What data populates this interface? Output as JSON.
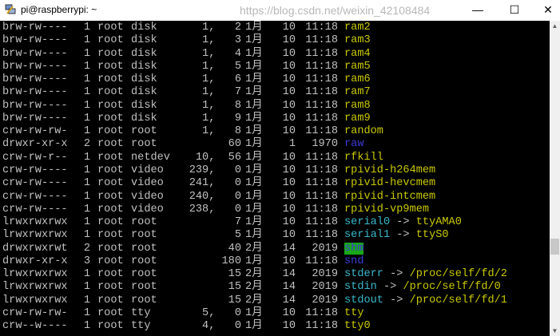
{
  "window": {
    "title": "pi@raspberrypi: ~",
    "minimize": "—",
    "maximize": "☐",
    "close": "✕"
  },
  "colors": {
    "file": "#c8c800",
    "symlink": "#3ab8cc",
    "directory": "#3c3cd8",
    "sticky_dir_bg": "#18a818",
    "text": "#c0c0c0",
    "background": "#000000"
  },
  "rows": [
    {
      "perm": "brw-rw----",
      "links": "1",
      "owner": "root",
      "group": "disk",
      "size": "1,   2",
      "month": "1月",
      "day": "10",
      "time": "11:18",
      "name": "ram2",
      "type": "yellow"
    },
    {
      "perm": "brw-rw----",
      "links": "1",
      "owner": "root",
      "group": "disk",
      "size": "1,   3",
      "month": "1月",
      "day": "10",
      "time": "11:18",
      "name": "ram3",
      "type": "yellow"
    },
    {
      "perm": "brw-rw----",
      "links": "1",
      "owner": "root",
      "group": "disk",
      "size": "1,   4",
      "month": "1月",
      "day": "10",
      "time": "11:18",
      "name": "ram4",
      "type": "yellow"
    },
    {
      "perm": "brw-rw----",
      "links": "1",
      "owner": "root",
      "group": "disk",
      "size": "1,   5",
      "month": "1月",
      "day": "10",
      "time": "11:18",
      "name": "ram5",
      "type": "yellow"
    },
    {
      "perm": "brw-rw----",
      "links": "1",
      "owner": "root",
      "group": "disk",
      "size": "1,   6",
      "month": "1月",
      "day": "10",
      "time": "11:18",
      "name": "ram6",
      "type": "yellow"
    },
    {
      "perm": "brw-rw----",
      "links": "1",
      "owner": "root",
      "group": "disk",
      "size": "1,   7",
      "month": "1月",
      "day": "10",
      "time": "11:18",
      "name": "ram7",
      "type": "yellow"
    },
    {
      "perm": "brw-rw----",
      "links": "1",
      "owner": "root",
      "group": "disk",
      "size": "1,   8",
      "month": "1月",
      "day": "10",
      "time": "11:18",
      "name": "ram8",
      "type": "yellow"
    },
    {
      "perm": "brw-rw----",
      "links": "1",
      "owner": "root",
      "group": "disk",
      "size": "1,   9",
      "month": "1月",
      "day": "10",
      "time": "11:18",
      "name": "ram9",
      "type": "yellow"
    },
    {
      "perm": "crw-rw-rw-",
      "links": "1",
      "owner": "root",
      "group": "root",
      "size": "1,   8",
      "month": "1月",
      "day": "10",
      "time": "11:18",
      "name": "random",
      "type": "yellow"
    },
    {
      "perm": "drwxr-xr-x",
      "links": "2",
      "owner": "root",
      "group": "root",
      "size": "60",
      "month": "1月",
      "day": "1",
      "time": "1970",
      "name": "raw",
      "type": "blue"
    },
    {
      "perm": "crw-rw-r--",
      "links": "1",
      "owner": "root",
      "group": "netdev",
      "size": "10,  56",
      "month": "1月",
      "day": "10",
      "time": "11:18",
      "name": "rfkill",
      "type": "yellow"
    },
    {
      "perm": "crw-rw----",
      "links": "1",
      "owner": "root",
      "group": "video",
      "size": "239,   0",
      "month": "1月",
      "day": "10",
      "time": "11:18",
      "name": "rpivid-h264mem",
      "type": "yellow"
    },
    {
      "perm": "crw-rw----",
      "links": "1",
      "owner": "root",
      "group": "video",
      "size": "241,   0",
      "month": "1月",
      "day": "10",
      "time": "11:18",
      "name": "rpivid-hevcmem",
      "type": "yellow"
    },
    {
      "perm": "crw-rw----",
      "links": "1",
      "owner": "root",
      "group": "video",
      "size": "240,   0",
      "month": "1月",
      "day": "10",
      "time": "11:18",
      "name": "rpivid-intcmem",
      "type": "yellow"
    },
    {
      "perm": "crw-rw----",
      "links": "1",
      "owner": "root",
      "group": "video",
      "size": "238,   0",
      "month": "1月",
      "day": "10",
      "time": "11:18",
      "name": "rpivid-vp9mem",
      "type": "yellow"
    },
    {
      "perm": "lrwxrwxrwx",
      "links": "1",
      "owner": "root",
      "group": "root",
      "size": "7",
      "month": "1月",
      "day": "10",
      "time": "11:18",
      "name": "serial0",
      "type": "cyan",
      "arrow": " -> ",
      "target": "ttyAMA0"
    },
    {
      "perm": "lrwxrwxrwx",
      "links": "1",
      "owner": "root",
      "group": "root",
      "size": "5",
      "month": "1月",
      "day": "10",
      "time": "11:18",
      "name": "serial1",
      "type": "cyan",
      "arrow": " -> ",
      "target": "ttyS0"
    },
    {
      "perm": "drwxrwxrwt",
      "links": "2",
      "owner": "root",
      "group": "root",
      "size": "40",
      "month": "2月",
      "day": "14",
      "time": "2019",
      "name": "shm",
      "type": "shm"
    },
    {
      "perm": "drwxr-xr-x",
      "links": "3",
      "owner": "root",
      "group": "root",
      "size": "180",
      "month": "1月",
      "day": "10",
      "time": "11:18",
      "name": "snd",
      "type": "blue"
    },
    {
      "perm": "lrwxrwxrwx",
      "links": "1",
      "owner": "root",
      "group": "root",
      "size": "15",
      "month": "2月",
      "day": "14",
      "time": "2019",
      "name": "stderr",
      "type": "cyan",
      "arrow": " -> ",
      "target": "/proc/self/fd/2"
    },
    {
      "perm": "lrwxrwxrwx",
      "links": "1",
      "owner": "root",
      "group": "root",
      "size": "15",
      "month": "2月",
      "day": "14",
      "time": "2019",
      "name": "stdin",
      "type": "cyan",
      "arrow": " -> ",
      "target": "/proc/self/fd/0"
    },
    {
      "perm": "lrwxrwxrwx",
      "links": "1",
      "owner": "root",
      "group": "root",
      "size": "15",
      "month": "2月",
      "day": "14",
      "time": "2019",
      "name": "stdout",
      "type": "cyan",
      "arrow": " -> ",
      "target": "/proc/self/fd/1"
    },
    {
      "perm": "crw-rw-rw-",
      "links": "1",
      "owner": "root",
      "group": "tty",
      "size": "5,   0",
      "month": "1月",
      "day": "10",
      "time": "11:18",
      "name": "tty",
      "type": "yellow"
    },
    {
      "perm": "crw--w----",
      "links": "1",
      "owner": "root",
      "group": "tty",
      "size": "4,   0",
      "month": "1月",
      "day": "10",
      "time": "11:18",
      "name": "tty0",
      "type": "yellow"
    }
  ],
  "watermark": "https://blog.csdn.net/weixin_42108484"
}
